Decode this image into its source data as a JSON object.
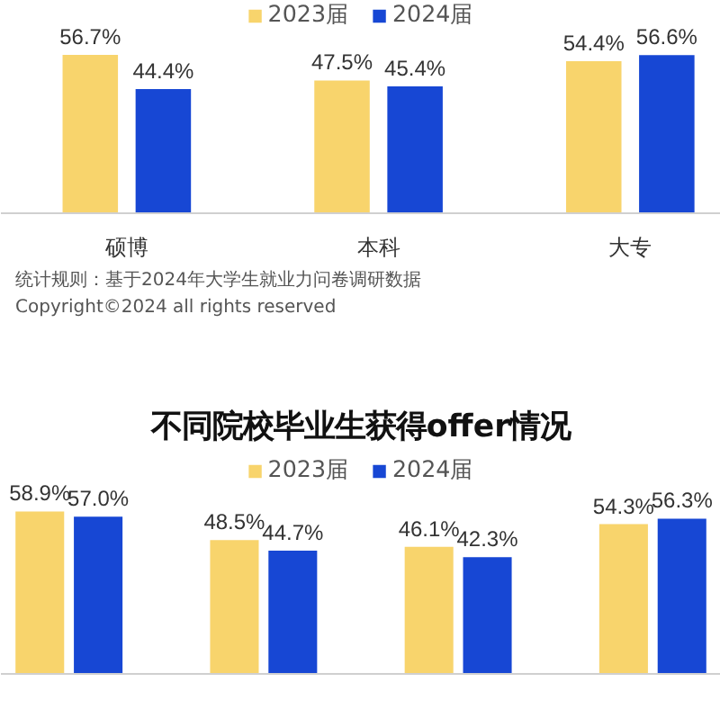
{
  "chart_data": [
    {
      "type": "bar",
      "categories": [
        "硕博",
        "本科",
        "大专"
      ],
      "series": [
        {
          "name": "2023届",
          "color": "#f8d46c",
          "values": [
            56.7,
            47.5,
            54.4
          ],
          "value_labels": [
            "56.7%",
            "47.5%",
            "54.4%"
          ]
        },
        {
          "name": "2024届",
          "color": "#1747d4",
          "values": [
            44.4,
            45.4,
            56.6
          ],
          "value_labels": [
            "44.4%",
            "45.4%",
            "56.6%"
          ]
        }
      ],
      "legend": "top",
      "annotations": [
        "统计规则：基于2024年大学生就业力问卷调研数据",
        "Copyright©2024 all rights reserved"
      ]
    },
    {
      "type": "bar",
      "title": "不同院校毕业生获得offer情况",
      "categories": [
        null,
        null,
        null,
        null
      ],
      "series": [
        {
          "name": "2023届",
          "color": "#f8d46c",
          "values": [
            58.9,
            48.5,
            46.1,
            54.3
          ],
          "value_labels": [
            "58.9%",
            "48.5%",
            "46.1%",
            "54.3%"
          ]
        },
        {
          "name": "2024届",
          "color": "#1747d4",
          "values": [
            57.0,
            44.7,
            42.3,
            56.3
          ],
          "value_labels": [
            "57.0%",
            "44.7%",
            "42.3%",
            "56.3%"
          ]
        }
      ],
      "legend": "top"
    }
  ]
}
